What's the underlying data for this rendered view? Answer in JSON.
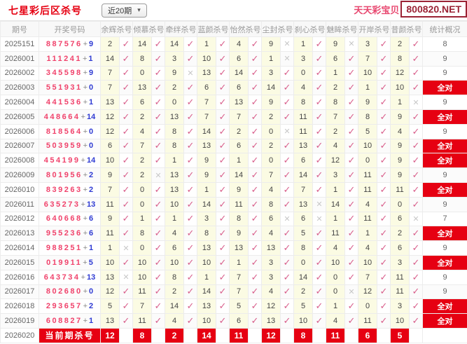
{
  "page": {
    "title": "七星彩后区杀号",
    "range_selector": "近20期",
    "brand": "天天彩宝贝",
    "domain": "800820.NET"
  },
  "icons": {
    "check": "✓",
    "cross": "✕",
    "chevron_down": "▾"
  },
  "labels": {
    "all_correct": "全对",
    "current_row": "当前期杀号",
    "plus": "+"
  },
  "colors": {
    "accent_red": "#e60012",
    "check_pink": "#d9608c",
    "cross_gray": "#c8c8c8",
    "front_red": "#f0426b",
    "back_blue": "#2f3bd3",
    "title_red": "#e60012",
    "brand_pink": "#e8476f",
    "domain_red": "#9b2335",
    "kill_yellow": "#fbfbe3"
  },
  "table": {
    "columns": [
      "期号",
      "开奖号码",
      "余辉杀号",
      "倾慕杀号",
      "牵绊杀号",
      "蓝颜杀号",
      "怡然杀号",
      "尘封杀号",
      "刹心杀号",
      "魅眸杀号",
      "开岸杀号",
      "昔颜杀号",
      "统计概况"
    ],
    "rows": [
      {
        "period": "2025151",
        "front": "887576",
        "back": "9",
        "values": [
          2,
          14,
          14,
          1,
          4,
          9,
          1,
          9,
          3,
          2
        ],
        "ok": [
          true,
          true,
          true,
          true,
          true,
          false,
          true,
          false,
          true,
          true
        ],
        "stat": "8"
      },
      {
        "period": "2026001",
        "front": "111241",
        "back": "1",
        "values": [
          14,
          8,
          3,
          10,
          6,
          1,
          3,
          6,
          7,
          8
        ],
        "ok": [
          true,
          true,
          true,
          true,
          true,
          false,
          true,
          true,
          true,
          true
        ],
        "stat": "9"
      },
      {
        "period": "2026002",
        "front": "345598",
        "back": "9",
        "values": [
          7,
          0,
          9,
          13,
          14,
          3,
          0,
          1,
          10,
          12
        ],
        "ok": [
          true,
          true,
          false,
          true,
          true,
          true,
          true,
          true,
          true,
          true
        ],
        "stat": "9"
      },
      {
        "period": "2026003",
        "front": "551931",
        "back": "0",
        "values": [
          7,
          13,
          2,
          6,
          6,
          14,
          4,
          2,
          1,
          10
        ],
        "ok": [
          true,
          true,
          true,
          true,
          true,
          true,
          true,
          true,
          true,
          true
        ],
        "stat": "全对"
      },
      {
        "period": "2026004",
        "front": "441536",
        "back": "1",
        "values": [
          13,
          6,
          0,
          7,
          13,
          9,
          8,
          8,
          9,
          1
        ],
        "ok": [
          true,
          true,
          true,
          true,
          true,
          true,
          true,
          true,
          true,
          false
        ],
        "stat": "9"
      },
      {
        "period": "2026005",
        "front": "448664",
        "back": "14",
        "values": [
          12,
          2,
          13,
          7,
          7,
          2,
          11,
          7,
          8,
          9
        ],
        "ok": [
          true,
          true,
          true,
          true,
          true,
          true,
          true,
          true,
          true,
          true
        ],
        "stat": "全对"
      },
      {
        "period": "2026006",
        "front": "818564",
        "back": "0",
        "values": [
          12,
          4,
          8,
          14,
          2,
          0,
          11,
          2,
          5,
          4
        ],
        "ok": [
          true,
          true,
          true,
          true,
          true,
          false,
          true,
          true,
          true,
          true
        ],
        "stat": "9"
      },
      {
        "period": "2026007",
        "front": "503959",
        "back": "0",
        "values": [
          6,
          7,
          8,
          13,
          6,
          2,
          13,
          4,
          10,
          9
        ],
        "ok": [
          true,
          true,
          true,
          true,
          true,
          true,
          true,
          true,
          true,
          true
        ],
        "stat": "全对"
      },
      {
        "period": "2026008",
        "front": "454199",
        "back": "14",
        "values": [
          10,
          2,
          1,
          9,
          1,
          0,
          6,
          12,
          0,
          9
        ],
        "ok": [
          true,
          true,
          true,
          true,
          true,
          true,
          true,
          true,
          true,
          true
        ],
        "stat": "全对"
      },
      {
        "period": "2026009",
        "front": "801956",
        "back": "2",
        "values": [
          9,
          2,
          13,
          9,
          14,
          7,
          14,
          3,
          11,
          9
        ],
        "ok": [
          true,
          false,
          true,
          true,
          true,
          true,
          true,
          true,
          true,
          true
        ],
        "stat": "9"
      },
      {
        "period": "2026010",
        "front": "839263",
        "back": "2",
        "values": [
          7,
          0,
          13,
          1,
          9,
          4,
          7,
          1,
          11,
          11
        ],
        "ok": [
          true,
          true,
          true,
          true,
          true,
          true,
          true,
          true,
          true,
          true
        ],
        "stat": "全对"
      },
      {
        "period": "2026011",
        "front": "635273",
        "back": "13",
        "values": [
          11,
          0,
          10,
          14,
          11,
          8,
          13,
          14,
          4,
          0
        ],
        "ok": [
          true,
          true,
          true,
          true,
          true,
          true,
          false,
          true,
          true,
          true
        ],
        "stat": "9"
      },
      {
        "period": "2026012",
        "front": "640668",
        "back": "6",
        "values": [
          9,
          1,
          1,
          3,
          8,
          6,
          6,
          1,
          11,
          6
        ],
        "ok": [
          true,
          true,
          true,
          true,
          true,
          false,
          false,
          true,
          true,
          false
        ],
        "stat": "7"
      },
      {
        "period": "2026013",
        "front": "955236",
        "back": "6",
        "values": [
          11,
          8,
          4,
          8,
          9,
          4,
          5,
          11,
          1,
          2
        ],
        "ok": [
          true,
          true,
          true,
          true,
          true,
          true,
          true,
          true,
          true,
          true
        ],
        "stat": "全对"
      },
      {
        "period": "2026014",
        "front": "988251",
        "back": "1",
        "values": [
          1,
          0,
          6,
          13,
          13,
          13,
          8,
          4,
          4,
          6
        ],
        "ok": [
          false,
          true,
          true,
          true,
          true,
          true,
          true,
          true,
          true,
          true
        ],
        "stat": "9"
      },
      {
        "period": "2026015",
        "front": "019911",
        "back": "5",
        "values": [
          10,
          10,
          10,
          10,
          1,
          3,
          0,
          10,
          10,
          3
        ],
        "ok": [
          true,
          true,
          true,
          true,
          true,
          true,
          true,
          true,
          true,
          true
        ],
        "stat": "全对"
      },
      {
        "period": "2026016",
        "front": "643734",
        "back": "13",
        "values": [
          13,
          10,
          8,
          1,
          7,
          3,
          14,
          0,
          7,
          11
        ],
        "ok": [
          false,
          true,
          true,
          true,
          true,
          true,
          true,
          true,
          true,
          true
        ],
        "stat": "9"
      },
      {
        "period": "2026017",
        "front": "802680",
        "back": "0",
        "values": [
          12,
          11,
          2,
          14,
          7,
          4,
          2,
          0,
          12,
          11
        ],
        "ok": [
          true,
          true,
          true,
          true,
          true,
          true,
          true,
          false,
          true,
          true
        ],
        "stat": "9"
      },
      {
        "period": "2026018",
        "front": "293657",
        "back": "2",
        "values": [
          5,
          7,
          14,
          13,
          5,
          12,
          5,
          1,
          0,
          3
        ],
        "ok": [
          true,
          true,
          true,
          true,
          true,
          true,
          true,
          true,
          true,
          true
        ],
        "stat": "全对"
      },
      {
        "period": "2026019",
        "front": "608827",
        "back": "1",
        "values": [
          13,
          11,
          4,
          10,
          6,
          13,
          10,
          4,
          11,
          10
        ],
        "ok": [
          true,
          true,
          true,
          true,
          true,
          true,
          true,
          true,
          true,
          true
        ],
        "stat": "全对"
      }
    ],
    "current_row": {
      "period": "2026020",
      "kills": [
        12,
        8,
        2,
        14,
        11,
        12,
        8,
        11,
        6,
        5
      ]
    }
  }
}
